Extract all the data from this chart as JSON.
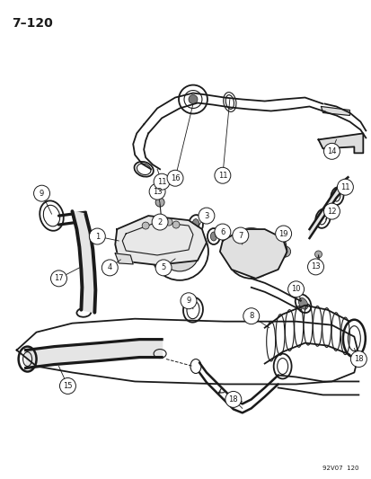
{
  "title": "7–120",
  "watermark": "92V07  120",
  "background_color": "#ffffff",
  "text_color": "#1a1a1a",
  "line_color": "#1a1a1a",
  "fig_width": 4.14,
  "fig_height": 5.33,
  "dpi": 100
}
